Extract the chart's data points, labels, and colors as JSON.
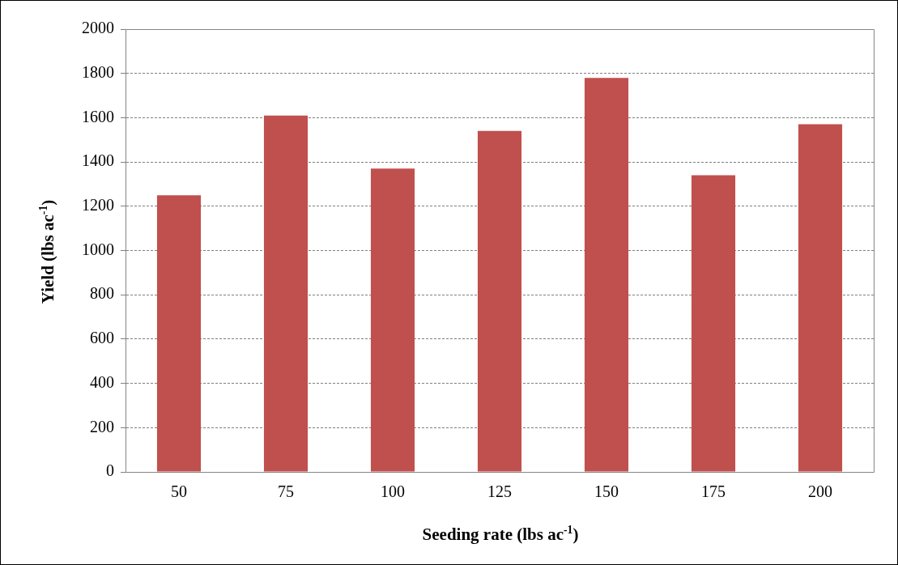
{
  "chart_data": {
    "type": "bar",
    "xlabel": "Seeding rate (lbs ac$^{-1}$)",
    "ylabel": "Yield (lbs ac$^{-1}$)",
    "categories": [
      "50",
      "75",
      "100",
      "125",
      "150",
      "175",
      "200"
    ],
    "values": [
      1250,
      1610,
      1370,
      1540,
      1780,
      1340,
      1570
    ],
    "color": "#c0504d",
    "ylim": [
      0,
      2000
    ],
    "yticks": [
      0,
      200,
      400,
      600,
      800,
      1000,
      1200,
      1400,
      1600,
      1800,
      2000
    ],
    "grid": "y",
    "legend": false
  }
}
